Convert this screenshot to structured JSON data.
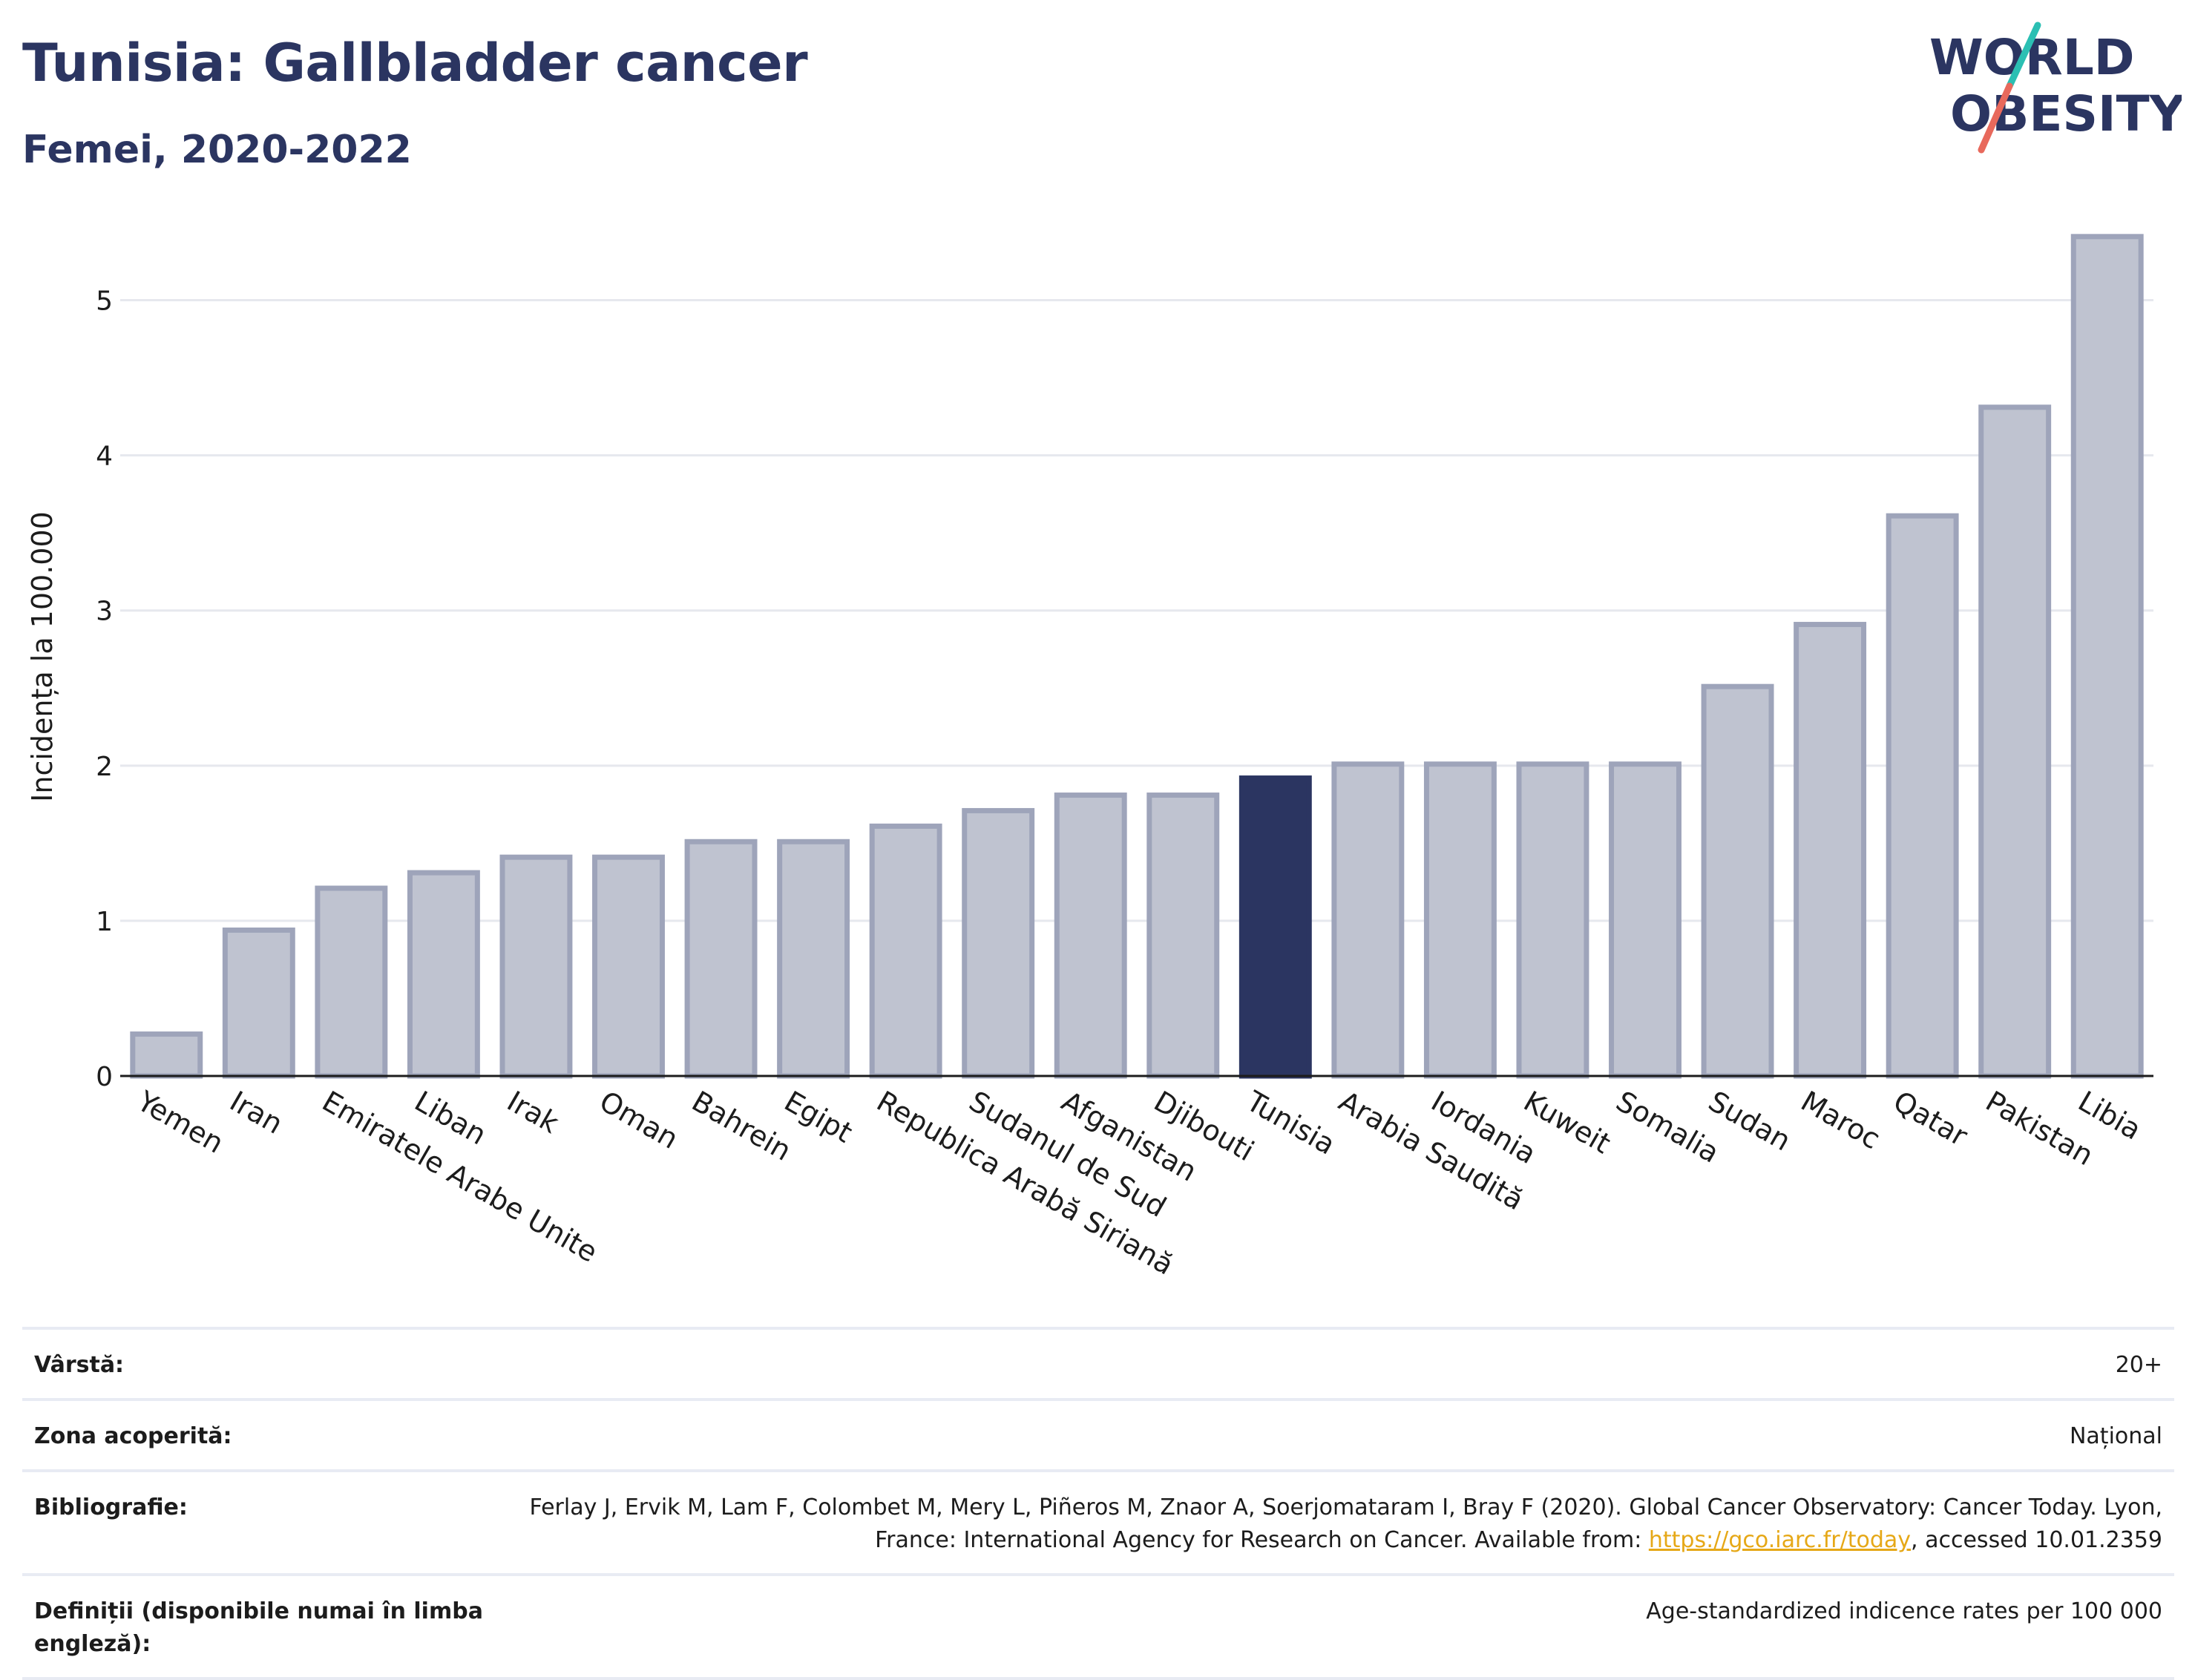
{
  "header": {
    "title": "Tunisia: Gallbladder cancer",
    "subtitle": "Femei, 2020-2022",
    "logo_line1": "WORLD",
    "logo_line2": "OBESITY"
  },
  "colors": {
    "navy": "#2b3561",
    "bar_fill": "#bfc3d0",
    "bar_stroke": "#9ea4ba",
    "logo_teal": "#2bbfb3",
    "logo_coral": "#e8695c",
    "link": "#e6a817"
  },
  "chart_data": {
    "type": "bar",
    "title": "Tunisia: Gallbladder cancer",
    "subtitle": "Femei, 2020-2022",
    "xlabel": "",
    "ylabel": "Incidența la 100.000",
    "ylim": [
      0,
      5.5
    ],
    "yticks": [
      0,
      1,
      2,
      3,
      4,
      5
    ],
    "grid": true,
    "highlight": "Tunisia",
    "categories": [
      "Yemen",
      "Iran",
      "Emiratele Arabe Unite",
      "Liban",
      "Irak",
      "Oman",
      "Bahrein",
      "Egipt",
      "Republica Arabă Siriană",
      "Sudanul de Sud",
      "Afganistan",
      "Djibouti",
      "Tunisia",
      "Arabia Saudită",
      "Iordania",
      "Kuweit",
      "Somalia",
      "Sudan",
      "Maroc",
      "Qatar",
      "Pakistan",
      "Libia"
    ],
    "values": [
      0.27,
      0.94,
      1.21,
      1.31,
      1.41,
      1.41,
      1.51,
      1.51,
      1.61,
      1.71,
      1.81,
      1.81,
      1.92,
      2.01,
      2.01,
      2.01,
      2.01,
      2.51,
      2.91,
      3.61,
      4.31,
      5.41
    ]
  },
  "meta": {
    "age_label": "Vârstă:",
    "age_value": "20+",
    "coverage_label": "Zona acoperită:",
    "coverage_value": "Național",
    "biblio_label": "Bibliografie:",
    "biblio_text_1": "Ferlay J, Ervik M, Lam F, Colombet M, Mery L, Piñeros M, Znaor A, Soerjomataram I, Bray F (2020). Global Cancer Observatory: Cancer Today. Lyon, France: International Agency for Research on Cancer. Available from: ",
    "biblio_link": "https://gco.iarc.fr/today",
    "biblio_text_2": ", accessed 10.01.2359",
    "definitions_label": "Definiții (disponibile numai în limba engleză):",
    "definitions_value": "Age-standardized indicence rates per 100 000"
  }
}
